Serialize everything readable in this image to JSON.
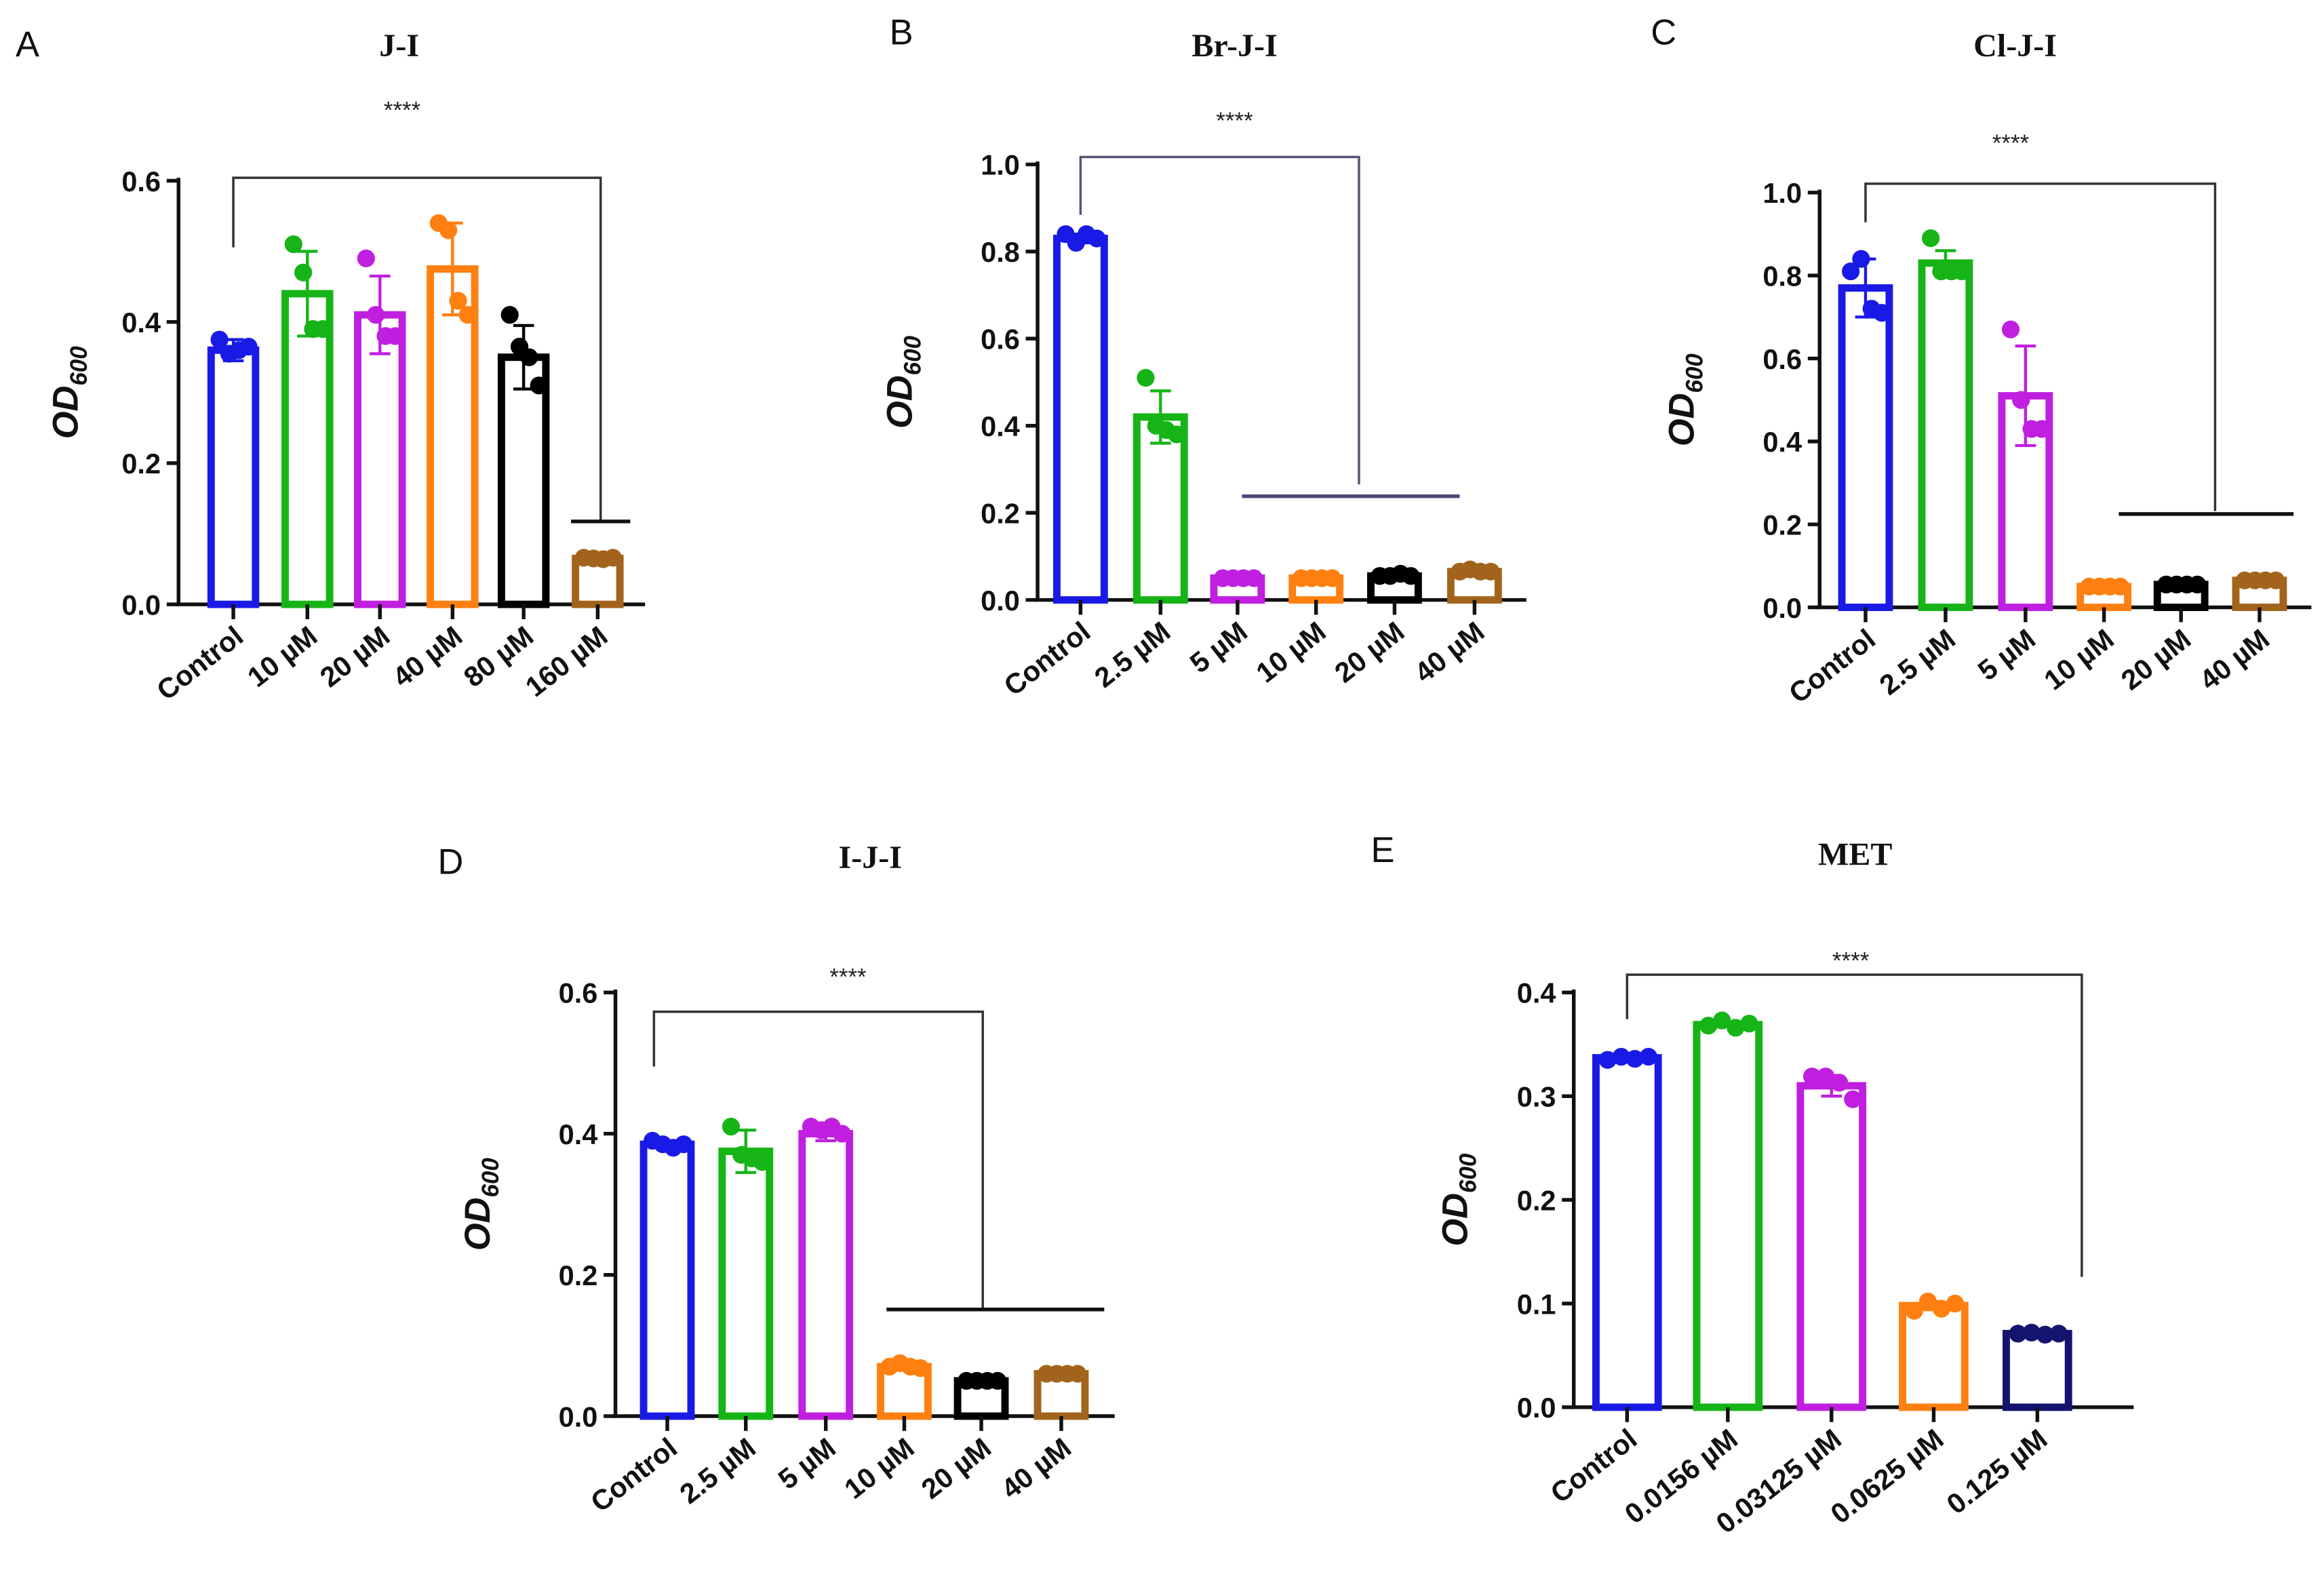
{
  "chart_data": [
    {
      "panel": "A",
      "type": "bar",
      "title": "J-I",
      "ylabel": "OD",
      "ylabel_sub": "600",
      "xlabel": "",
      "ylim": [
        0,
        0.6
      ],
      "yticks": [
        "0.0",
        "0.2",
        "0.4",
        "0.6"
      ],
      "significance": "****",
      "categories": [
        "Control",
        "10 µM",
        "20 µM",
        "40 µM",
        "80 µM",
        "160 µM"
      ],
      "values": [
        0.36,
        0.44,
        0.41,
        0.475,
        0.35,
        0.065
      ],
      "sd": [
        0.015,
        0.06,
        0.055,
        0.065,
        0.045,
        0.004
      ],
      "points": [
        [
          0.375,
          0.355,
          0.36,
          0.365
        ],
        [
          0.51,
          0.47,
          0.39,
          0.39
        ],
        [
          0.49,
          0.41,
          0.38,
          0.38
        ],
        [
          0.54,
          0.53,
          0.43,
          0.41
        ],
        [
          0.41,
          0.365,
          0.35,
          0.31
        ],
        [
          0.066,
          0.065,
          0.064,
          0.066
        ]
      ],
      "colors": [
        "#1a1ae6",
        "#16b416",
        "#c01fe0",
        "#ff7f10",
        "#000000",
        "#a2641c"
      ]
    },
    {
      "panel": "B",
      "type": "bar",
      "title": "Br-J-I",
      "ylabel": "OD",
      "ylabel_sub": "600",
      "xlabel": "",
      "ylim": [
        0,
        1.0
      ],
      "yticks": [
        "0.0",
        "0.2",
        "0.4",
        "0.6",
        "0.8",
        "1.0"
      ],
      "significance": "****",
      "categories": [
        "Control",
        "2.5 µM",
        "5 µM",
        "10 µM",
        "20 µM",
        "40 µM"
      ],
      "values": [
        0.83,
        0.42,
        0.05,
        0.05,
        0.055,
        0.065
      ],
      "sd": [
        0.01,
        0.06,
        0.004,
        0.004,
        0.005,
        0.005
      ],
      "points": [
        [
          0.84,
          0.82,
          0.84,
          0.83
        ],
        [
          0.51,
          0.4,
          0.39,
          0.38
        ],
        [
          0.05,
          0.05,
          0.05,
          0.05
        ],
        [
          0.05,
          0.05,
          0.05,
          0.05
        ],
        [
          0.055,
          0.055,
          0.06,
          0.055
        ],
        [
          0.065,
          0.07,
          0.065,
          0.065
        ]
      ],
      "colors": [
        "#1a1ae6",
        "#16b416",
        "#c01fe0",
        "#ff7f10",
        "#000000",
        "#a2641c"
      ]
    },
    {
      "panel": "C",
      "type": "bar",
      "title": "Cl-J-I",
      "ylabel": "OD",
      "ylabel_sub": "600",
      "xlabel": "",
      "ylim": [
        0,
        1.0
      ],
      "yticks": [
        "0.0",
        "0.2",
        "0.4",
        "0.6",
        "0.8",
        "1.0"
      ],
      "significance": "****",
      "categories": [
        "Control",
        "2.5 µM",
        "5 µM",
        "10 µM",
        "20 µM",
        "40 µM"
      ],
      "values": [
        0.77,
        0.83,
        0.51,
        0.05,
        0.055,
        0.065
      ],
      "sd": [
        0.07,
        0.03,
        0.12,
        0.004,
        0.005,
        0.005
      ],
      "points": [
        [
          0.81,
          0.84,
          0.72,
          0.71
        ],
        [
          0.89,
          0.81,
          0.81,
          0.81
        ],
        [
          0.67,
          0.5,
          0.43,
          0.43
        ],
        [
          0.05,
          0.05,
          0.05,
          0.05
        ],
        [
          0.055,
          0.055,
          0.055,
          0.055
        ],
        [
          0.065,
          0.065,
          0.065,
          0.065
        ]
      ],
      "colors": [
        "#1a1ae6",
        "#16b416",
        "#c01fe0",
        "#ff7f10",
        "#000000",
        "#a2641c"
      ]
    },
    {
      "panel": "D",
      "type": "bar",
      "title": "I-J-I",
      "ylabel": "OD",
      "ylabel_sub": "600",
      "xlabel": "",
      "ylim": [
        0,
        0.6
      ],
      "yticks": [
        "0.0",
        "0.2",
        "0.4",
        "0.6"
      ],
      "significance": "****",
      "categories": [
        "Control",
        "2.5 µM",
        "5 µM",
        "10 µM",
        "20 µM",
        "40 µM"
      ],
      "values": [
        0.385,
        0.375,
        0.4,
        0.07,
        0.05,
        0.06
      ],
      "sd": [
        0.005,
        0.03,
        0.01,
        0.004,
        0.003,
        0.004
      ],
      "points": [
        [
          0.39,
          0.385,
          0.38,
          0.385
        ],
        [
          0.41,
          0.37,
          0.365,
          0.36
        ],
        [
          0.41,
          0.405,
          0.41,
          0.4
        ],
        [
          0.07,
          0.075,
          0.07,
          0.068
        ],
        [
          0.05,
          0.05,
          0.05,
          0.05
        ],
        [
          0.06,
          0.06,
          0.06,
          0.06
        ]
      ],
      "colors": [
        "#1a1ae6",
        "#16b416",
        "#c01fe0",
        "#ff7f10",
        "#000000",
        "#a2641c"
      ]
    },
    {
      "panel": "E",
      "type": "bar",
      "title": "MET",
      "ylabel": "OD",
      "ylabel_sub": "600",
      "xlabel": "",
      "ylim": [
        0,
        0.4
      ],
      "yticks": [
        "0.0",
        "0.1",
        "0.2",
        "0.3",
        "0.4"
      ],
      "significance": "****",
      "categories": [
        "Control",
        "0.0156 µM",
        "0.03125 µM",
        "0.0625 µM",
        "0.125 µM"
      ],
      "values": [
        0.337,
        0.369,
        0.31,
        0.098,
        0.071
      ],
      "sd": [
        0.002,
        0.002,
        0.01,
        0.004,
        0.002
      ],
      "points": [
        [
          0.335,
          0.338,
          0.336,
          0.338
        ],
        [
          0.368,
          0.373,
          0.366,
          0.37
        ],
        [
          0.319,
          0.319,
          0.313,
          0.297
        ],
        [
          0.093,
          0.102,
          0.095,
          0.1
        ],
        [
          0.071,
          0.072,
          0.07,
          0.071
        ]
      ],
      "colors": [
        "#1a1ae6",
        "#16b416",
        "#c01fe0",
        "#ff7f10",
        "#141470"
      ]
    }
  ]
}
